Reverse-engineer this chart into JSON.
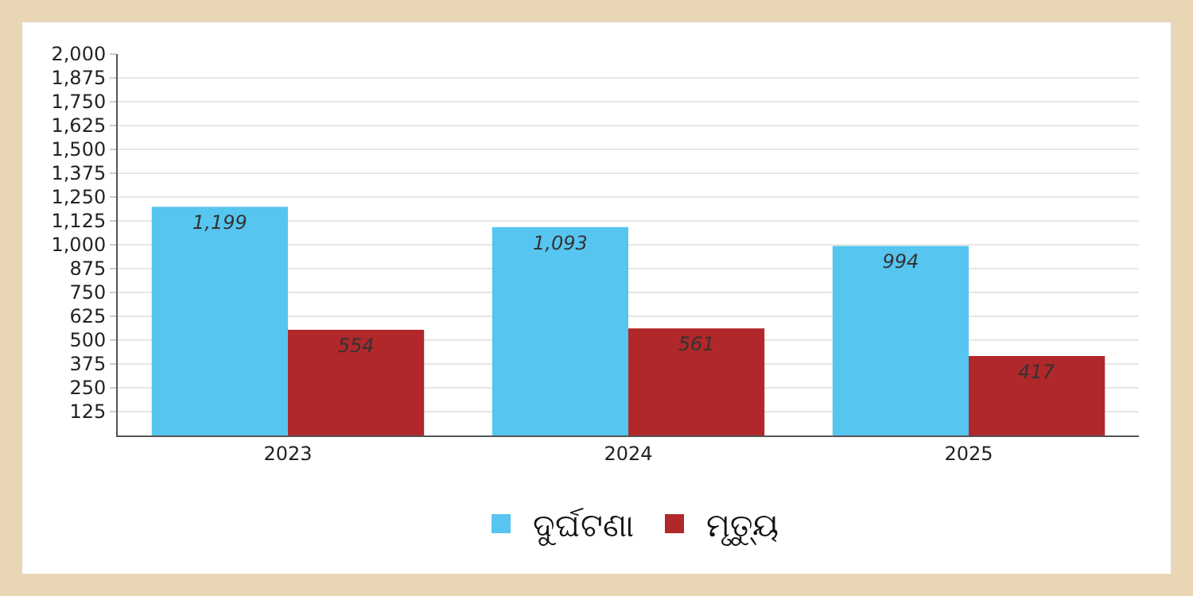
{
  "chart_data": {
    "type": "bar",
    "categories": [
      "2023",
      "2024",
      "2025"
    ],
    "series": [
      {
        "name": "ଦୁର୍ଘଟଣା",
        "color": "#56c5f0",
        "values": [
          1199,
          1093,
          994
        ],
        "value_labels": [
          "1,199",
          "1,093",
          "994"
        ]
      },
      {
        "name": "ମୃତ୍ୟୁ",
        "color": "#b0282a",
        "values": [
          554,
          561,
          417
        ],
        "value_labels": [
          "554",
          "561",
          "417"
        ]
      }
    ],
    "ylim": [
      0,
      2000
    ],
    "yticks": [
      125,
      250,
      375,
      500,
      625,
      750,
      875,
      {
        "value": 1000,
        "label": "1,000"
      },
      {
        "value": 1125,
        "label": "1,125"
      },
      {
        "value": 1250,
        "label": "1,250"
      },
      {
        "value": 1375,
        "label": "1,375"
      },
      {
        "value": 1500,
        "label": "1,500"
      },
      {
        "value": 1625,
        "label": "1,625"
      },
      {
        "value": 1750,
        "label": "1,750"
      },
      {
        "value": 1875,
        "label": "1,875"
      },
      {
        "value": 2000,
        "label": "2,000"
      }
    ],
    "grid": "y",
    "legend": "bottom"
  }
}
